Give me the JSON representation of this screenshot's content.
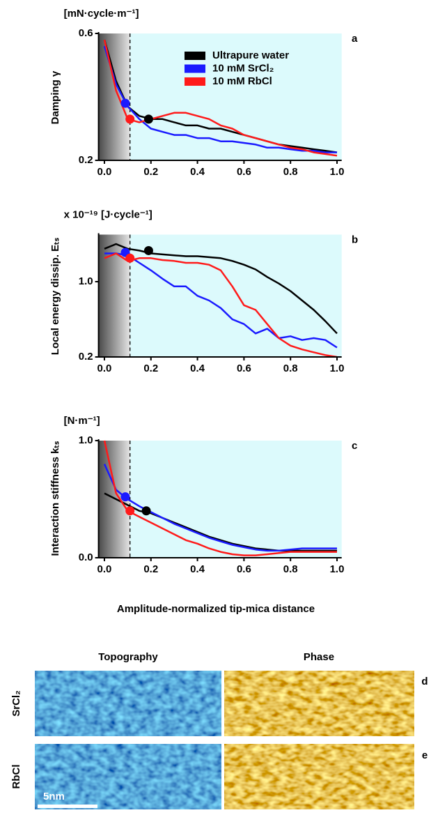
{
  "chart_data": [
    {
      "type": "line",
      "panel": "a",
      "unit_label": "[mN·cycle·m⁻¹]",
      "y_label": "Damping γ",
      "xlim": [
        -0.025,
        1.02
      ],
      "xticks": [
        {
          "value": 0,
          "label": "0.0"
        },
        0.2,
        0.4,
        0.6,
        0.8,
        {
          "value": 1,
          "label": "1.0"
        }
      ],
      "ylim": [
        0.2,
        0.6
      ],
      "yticks": [
        0.2,
        0.6
      ],
      "threshold": 0.11,
      "x": [
        0,
        0.05,
        0.1,
        0.15,
        0.2,
        0.25,
        0.3,
        0.35,
        0.4,
        0.45,
        0.5,
        0.55,
        0.6,
        0.65,
        0.7,
        0.75,
        0.8,
        0.85,
        0.9,
        0.95,
        1.0
      ],
      "series": [
        {
          "name": "Ultrapure water",
          "color": "#000000",
          "values": [
            0.58,
            0.45,
            0.37,
            0.34,
            0.33,
            0.33,
            0.32,
            0.31,
            0.31,
            0.3,
            0.3,
            0.29,
            0.28,
            0.27,
            0.26,
            0.25,
            0.245,
            0.24,
            0.235,
            0.23,
            0.225
          ],
          "highlight": {
            "x": 0.19,
            "y": 0.33
          }
        },
        {
          "name": "10 mM SrCl₂",
          "color": "#1a1aff",
          "values": [
            0.56,
            0.44,
            0.37,
            0.33,
            0.3,
            0.29,
            0.28,
            0.28,
            0.27,
            0.27,
            0.26,
            0.26,
            0.255,
            0.25,
            0.24,
            0.24,
            0.235,
            0.23,
            0.23,
            0.225,
            0.225
          ],
          "highlight": {
            "x": 0.09,
            "y": 0.38
          }
        },
        {
          "name": "10 mM RbCl",
          "color": "#ff1a1a",
          "values": [
            0.58,
            0.42,
            0.33,
            0.32,
            0.33,
            0.34,
            0.35,
            0.35,
            0.34,
            0.33,
            0.31,
            0.3,
            0.28,
            0.27,
            0.26,
            0.25,
            0.24,
            0.235,
            0.225,
            0.22,
            0.215
          ],
          "highlight": {
            "x": 0.11,
            "y": 0.33
          }
        }
      ]
    },
    {
      "type": "line",
      "panel": "b",
      "unit_label": "x 10⁻¹⁹ [J·cycle⁻¹]",
      "y_label": "Local energy dissip. Eₜₛ",
      "xlim": [
        -0.025,
        1.02
      ],
      "xticks": [
        {
          "value": 0,
          "label": "0.0"
        },
        0.2,
        0.4,
        0.6,
        0.8,
        {
          "value": 1,
          "label": "1.0"
        }
      ],
      "ylim": [
        0.2,
        1.5
      ],
      "yticks": [
        0.2,
        {
          "value": 1,
          "label": "1.0"
        }
      ],
      "threshold": 0.11,
      "x": [
        0,
        0.05,
        0.1,
        0.15,
        0.2,
        0.25,
        0.3,
        0.35,
        0.4,
        0.45,
        0.5,
        0.55,
        0.6,
        0.65,
        0.7,
        0.75,
        0.8,
        0.85,
        0.9,
        0.95,
        1.0
      ],
      "series": [
        {
          "color": "#000000",
          "values": [
            1.35,
            1.4,
            1.35,
            1.33,
            1.3,
            1.29,
            1.28,
            1.27,
            1.27,
            1.26,
            1.25,
            1.22,
            1.18,
            1.13,
            1.05,
            0.98,
            0.9,
            0.8,
            0.7,
            0.58,
            0.45
          ],
          "highlight": {
            "x": 0.19,
            "y": 1.33
          }
        },
        {
          "color": "#1a1aff",
          "values": [
            1.3,
            1.3,
            1.28,
            1.2,
            1.12,
            1.03,
            0.95,
            0.95,
            0.85,
            0.8,
            0.72,
            0.6,
            0.55,
            0.45,
            0.5,
            0.4,
            0.42,
            0.38,
            0.4,
            0.38,
            0.3
          ],
          "highlight": {
            "x": 0.09,
            "y": 1.31
          }
        },
        {
          "color": "#ff1a1a",
          "values": [
            1.25,
            1.3,
            1.22,
            1.25,
            1.25,
            1.23,
            1.22,
            1.2,
            1.2,
            1.18,
            1.12,
            0.95,
            0.75,
            0.7,
            0.55,
            0.4,
            0.32,
            0.28,
            0.25,
            0.22,
            0.2
          ],
          "highlight": {
            "x": 0.11,
            "y": 1.25
          }
        }
      ]
    },
    {
      "type": "line",
      "panel": "c",
      "unit_label": "[N·m⁻¹]",
      "y_label": "Interaction stiffness kₜₛ",
      "x_label": "Amplitude-normalized tip-mica distance",
      "xlim": [
        -0.025,
        1.02
      ],
      "xticks": [
        {
          "value": 0,
          "label": "0.0"
        },
        0.2,
        0.4,
        0.6,
        0.8,
        {
          "value": 1,
          "label": "1.0"
        }
      ],
      "ylim": [
        0,
        1
      ],
      "yticks": [
        {
          "value": 0,
          "label": "0.0"
        },
        {
          "value": 1,
          "label": "1.0"
        }
      ],
      "threshold": 0.11,
      "x": [
        0,
        0.05,
        0.1,
        0.15,
        0.2,
        0.25,
        0.3,
        0.35,
        0.4,
        0.45,
        0.5,
        0.55,
        0.6,
        0.65,
        0.7,
        0.75,
        0.8,
        0.85,
        0.9,
        0.95,
        1.0
      ],
      "series": [
        {
          "color": "#000000",
          "values": [
            0.55,
            0.5,
            0.45,
            0.4,
            0.38,
            0.34,
            0.3,
            0.26,
            0.22,
            0.18,
            0.15,
            0.12,
            0.1,
            0.08,
            0.07,
            0.06,
            0.06,
            0.06,
            0.06,
            0.06,
            0.06
          ],
          "highlight": {
            "x": 0.18,
            "y": 0.4
          }
        },
        {
          "color": "#1a1aff",
          "values": [
            0.8,
            0.58,
            0.5,
            0.44,
            0.39,
            0.34,
            0.29,
            0.25,
            0.21,
            0.17,
            0.14,
            0.11,
            0.09,
            0.07,
            0.06,
            0.06,
            0.07,
            0.08,
            0.08,
            0.08,
            0.08
          ],
          "highlight": {
            "x": 0.09,
            "y": 0.52
          }
        },
        {
          "color": "#ff1a1a",
          "values": [
            1.0,
            0.55,
            0.4,
            0.35,
            0.3,
            0.25,
            0.2,
            0.15,
            0.12,
            0.08,
            0.05,
            0.03,
            0.02,
            0.02,
            0.03,
            0.04,
            0.05,
            0.05,
            0.05,
            0.05,
            0.05
          ],
          "highlight": {
            "x": 0.11,
            "y": 0.4
          }
        }
      ]
    }
  ],
  "images": {
    "columns": [
      "Topography",
      "Phase"
    ],
    "rows": [
      {
        "label": "SrCl₂",
        "panel": "d"
      },
      {
        "label": "RbCl",
        "panel": "e"
      }
    ],
    "scale_bar": "5nm"
  }
}
